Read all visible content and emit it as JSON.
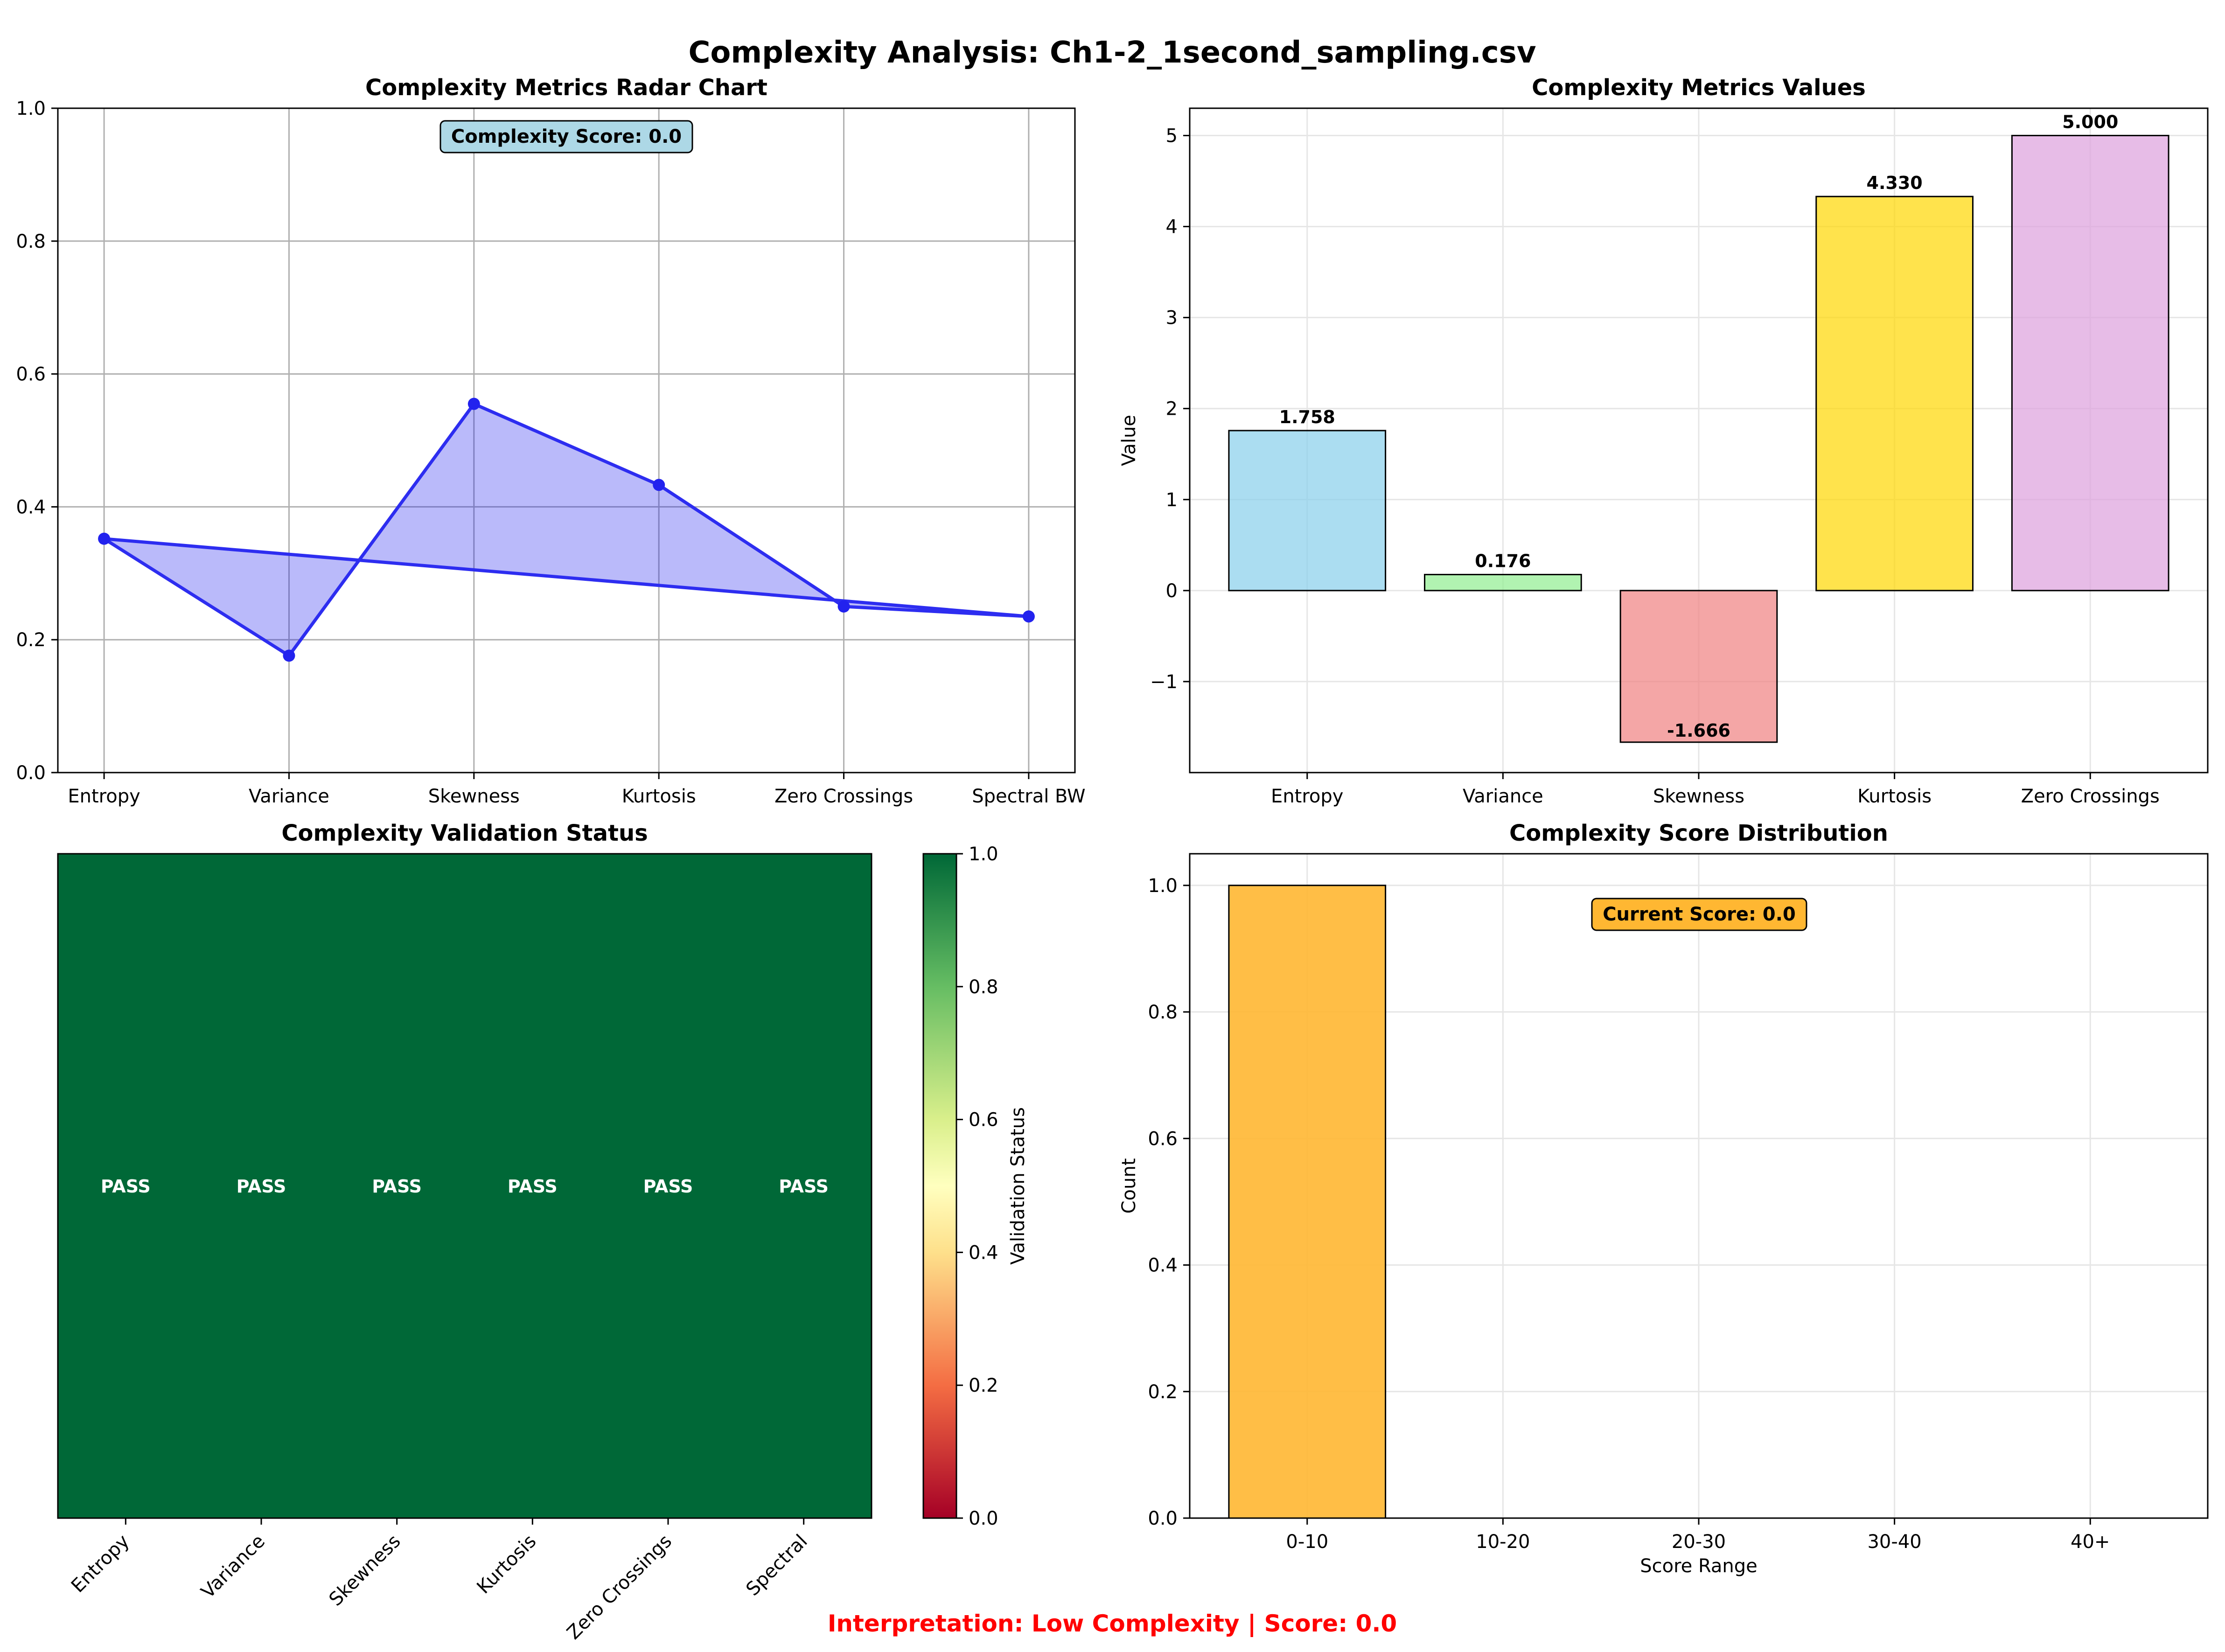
{
  "suptitle": "Complexity Analysis: Ch1-2_1second_sampling.csv",
  "footer": "Interpretation: Low Complexity | Score: 0.0",
  "chart_data": [
    {
      "type": "line",
      "title": "Complexity Metrics Radar Chart",
      "categories": [
        "Entropy",
        "Variance",
        "Skewness",
        "Kurtosis",
        "Zero Crossings",
        "Spectral BW"
      ],
      "values": [
        0.352,
        0.176,
        0.555,
        0.433,
        0.25,
        0.235
      ],
      "closed": true,
      "filled": true,
      "ylim": [
        0,
        1
      ],
      "yticks": [
        "0.0",
        "0.2",
        "0.4",
        "0.6",
        "0.8",
        "1.0"
      ],
      "grid": true,
      "color": "#0000ee",
      "annotation": "Complexity Score: 0.0"
    },
    {
      "type": "bar",
      "title": "Complexity Metrics Values",
      "ylabel": "Value",
      "categories": [
        "Entropy",
        "Variance",
        "Skewness",
        "Kurtosis",
        "Zero Crossings"
      ],
      "values": [
        1.758,
        0.176,
        -1.666,
        4.33,
        5.0
      ],
      "value_labels": [
        "1.758",
        "0.176",
        "-1.666",
        "4.330",
        "5.000"
      ],
      "colors": [
        "#87ceeb",
        "#90ee90",
        "#f08080",
        "#ffd700",
        "#dda0dd"
      ],
      "ylim": [
        -2.0,
        5.3
      ],
      "yticks": [
        "−1",
        "0",
        "1",
        "2",
        "3",
        "4",
        "5"
      ],
      "grid": true
    },
    {
      "type": "heatmap",
      "title": "Complexity Validation Status",
      "categories": [
        "Entropy",
        "Variance",
        "Skewness",
        "Kurtosis",
        "Zero Crossings",
        "Spectral"
      ],
      "values": [
        1,
        1,
        1,
        1,
        1,
        1
      ],
      "cell_labels": [
        "PASS",
        "PASS",
        "PASS",
        "PASS",
        "PASS",
        "PASS"
      ],
      "colormap": "RdYlGn",
      "colorbar_label": "Validation Status",
      "colorbar_ticks": [
        "0.0",
        "0.2",
        "0.4",
        "0.6",
        "0.8",
        "1.0"
      ],
      "clim": [
        0,
        1
      ]
    },
    {
      "type": "bar",
      "title": "Complexity Score Distribution",
      "xlabel": "Score Range",
      "ylabel": "Count",
      "categories": [
        "0-10",
        "10-20",
        "20-30",
        "30-40",
        "40+"
      ],
      "values": [
        1,
        0,
        0,
        0,
        0
      ],
      "color": "#ffb732",
      "ylim": [
        0,
        1.05
      ],
      "yticks": [
        "0.0",
        "0.2",
        "0.4",
        "0.6",
        "0.8",
        "1.0"
      ],
      "grid": true,
      "annotation": "Current Score: 0.0"
    }
  ]
}
